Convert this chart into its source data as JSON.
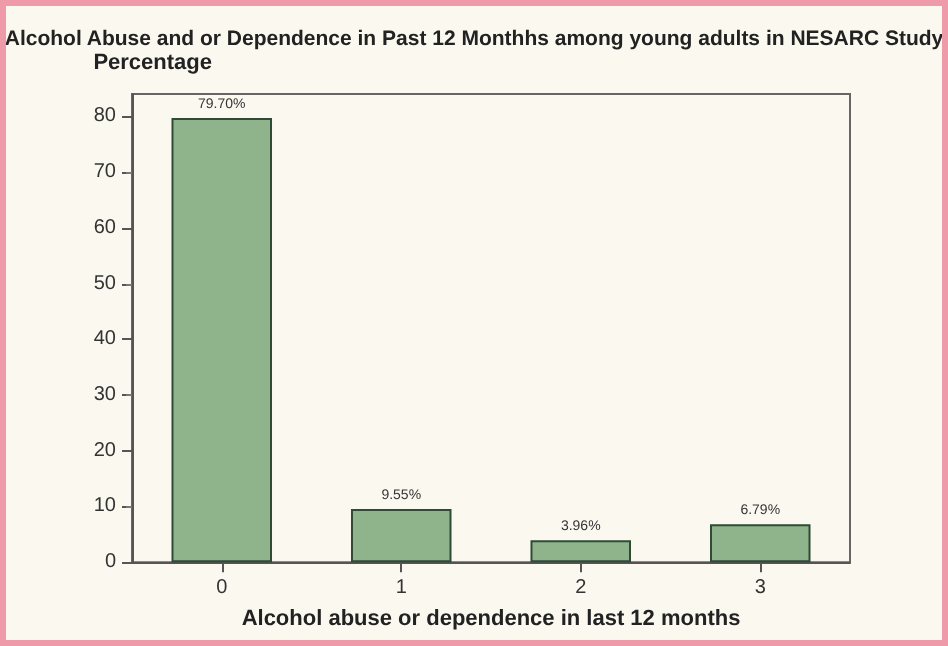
{
  "chart_data": {
    "type": "bar",
    "title": "Alcohol Abuse and or Dependence in Past 12 Monthhs among young adults in NESARC Study",
    "xlabel": "Alcohol abuse or dependence in last 12 months",
    "ylabel": "Percentage",
    "categories": [
      "0",
      "1",
      "2",
      "3"
    ],
    "values": [
      79.7,
      9.55,
      3.96,
      6.79
    ],
    "color": "#8fb48c",
    "value_labels": [
      "79.70%",
      "9.55%",
      "3.96%",
      "6.79%"
    ],
    "ylim": [
      0,
      84
    ],
    "yticks": [
      0,
      10,
      20,
      30,
      40,
      50,
      60,
      70,
      80
    ],
    "grid": false
  }
}
